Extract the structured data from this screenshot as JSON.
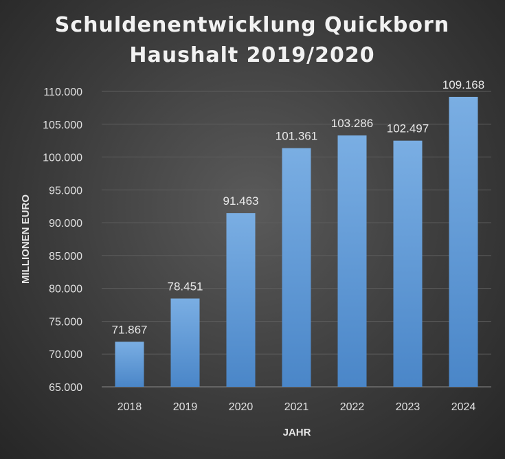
{
  "chart_data": {
    "type": "bar",
    "title": "Schuldenentwicklung Quickborn",
    "subtitle": "Haushalt 2019/2020",
    "xlabel": "JAHR",
    "ylabel": "MILLIONEN EURO",
    "categories": [
      "2018",
      "2019",
      "2020",
      "2021",
      "2022",
      "2023",
      "2024"
    ],
    "values": [
      71.867,
      78.451,
      91.463,
      101.361,
      103.286,
      102.497,
      109.168
    ],
    "value_labels": [
      "71.867",
      "78.451",
      "91.463",
      "101.361",
      "103.286",
      "102.497",
      "109.168"
    ],
    "ylim": [
      65,
      110
    ],
    "yticks": [
      65,
      70,
      75,
      80,
      85,
      90,
      95,
      100,
      105,
      110
    ],
    "ytick_labels": [
      "65.000",
      "70.000",
      "75.000",
      "80.000",
      "85.000",
      "90.000",
      "95.000",
      "100.000",
      "105.000",
      "110.000"
    ],
    "grid": true,
    "legend": "none",
    "colors": {
      "bar_top": "#7aaee3",
      "bar_bottom": "#4a86c8",
      "background": "#3c3c3c",
      "text": "#e6e6e6"
    }
  }
}
